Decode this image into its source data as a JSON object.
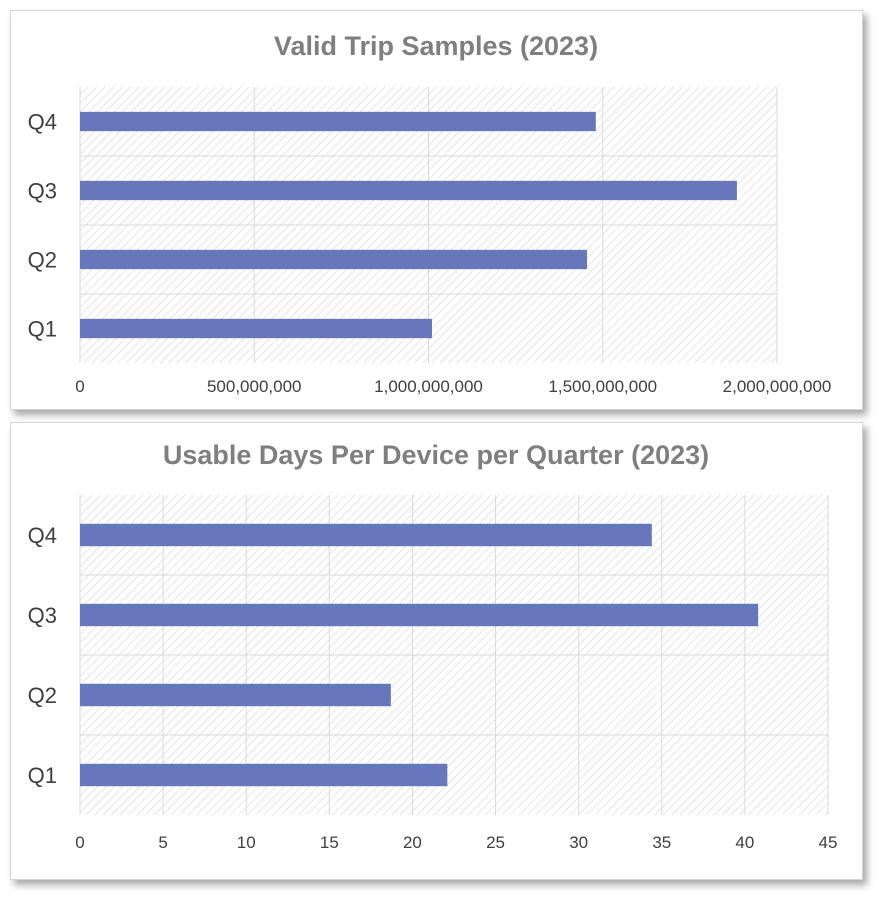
{
  "colors": {
    "bar": "#6777bb",
    "title": "#7f7f7f",
    "grid": "#d9d9d9",
    "hatch": "#cfcfcf",
    "text": "#404040"
  },
  "chart_data": [
    {
      "type": "bar",
      "orientation": "horizontal",
      "title": "Valid Trip Samples (2023)",
      "categories": [
        "Q1",
        "Q2",
        "Q3",
        "Q4"
      ],
      "values": [
        1010000000,
        1455000000,
        1885000000,
        1480000000
      ],
      "xlim": [
        0,
        2000000000
      ],
      "xticks": [
        0,
        500000000,
        1000000000,
        1500000000,
        2000000000
      ],
      "xtick_labels": [
        "0",
        "500,000,000",
        "1,000,000,000",
        "1,500,000,000",
        "2,000,000,000"
      ],
      "grid": true,
      "legend": "none"
    },
    {
      "type": "bar",
      "orientation": "horizontal",
      "title": "Usable Days Per Device per Quarter (2023)",
      "categories": [
        "Q1",
        "Q2",
        "Q3",
        "Q4"
      ],
      "values": [
        22.1,
        18.7,
        40.8,
        34.4
      ],
      "xlim": [
        0,
        45
      ],
      "xticks": [
        0,
        5,
        10,
        15,
        20,
        25,
        30,
        35,
        40,
        45
      ],
      "xtick_labels": [
        "0",
        "5",
        "10",
        "15",
        "20",
        "25",
        "30",
        "35",
        "40",
        "45"
      ],
      "grid": true,
      "legend": "none"
    }
  ]
}
